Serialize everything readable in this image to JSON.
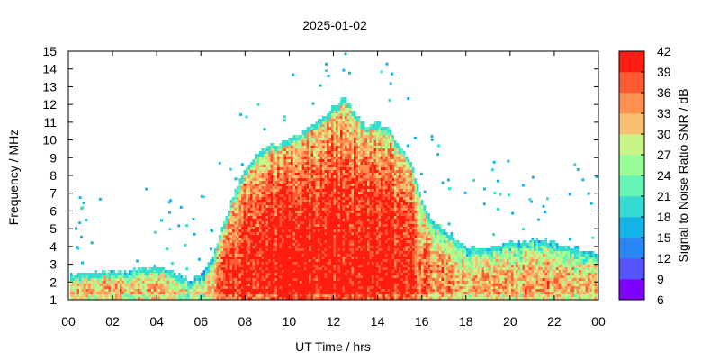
{
  "chart_data": {
    "type": "heatmap",
    "title": "2025-01-02",
    "xlabel": "UT Time / hrs",
    "ylabel": "Frequency / MHz",
    "colorbar_label": "Signal to Noise Ratio SNR / dB",
    "xlim": [
      0,
      24
    ],
    "ylim": [
      1,
      15
    ],
    "x_ticks": [
      "00",
      "02",
      "04",
      "06",
      "08",
      "10",
      "12",
      "14",
      "16",
      "18",
      "20",
      "22",
      "00"
    ],
    "y_ticks": [
      "1",
      "2",
      "3",
      "4",
      "5",
      "6",
      "7",
      "8",
      "9",
      "10",
      "11",
      "12",
      "13",
      "14",
      "15"
    ],
    "colorbar_ticks": [
      "6",
      "9",
      "12",
      "15",
      "18",
      "21",
      "24",
      "27",
      "30",
      "33",
      "36",
      "39",
      "42"
    ],
    "colorbar_range": [
      6,
      42
    ],
    "colorbar_colors": [
      "#7f00ff",
      "#5555ff",
      "#2a86f5",
      "#14b4e8",
      "#36dcd2",
      "#64f4b4",
      "#98ff98",
      "#c8f488",
      "#f8c070",
      "#ff9050",
      "#ff5a32",
      "#ff1c10"
    ],
    "grid": false,
    "envelope": {
      "description_hours": [
        0,
        1,
        2,
        3,
        4,
        5,
        5.5,
        6,
        6.5,
        7,
        7.5,
        8,
        8.5,
        9,
        9.5,
        10,
        10.5,
        11,
        11.5,
        12,
        12.5,
        13,
        13.5,
        14,
        14.5,
        15,
        15.5,
        16,
        16.5,
        17,
        17.5,
        18,
        19,
        20,
        21,
        22,
        23,
        24
      ],
      "max_freq_mhz": [
        2.5,
        2.6,
        2.7,
        2.8,
        2.9,
        2.5,
        2.2,
        2.6,
        3.5,
        5.5,
        7.2,
        8.5,
        9.3,
        9.8,
        9.9,
        10.1,
        10.5,
        11.0,
        11.4,
        12.0,
        12.5,
        11.5,
        10.8,
        11.0,
        10.6,
        9.7,
        8.8,
        6.5,
        5.5,
        5.0,
        4.5,
        4.0,
        4.0,
        4.3,
        4.5,
        4.3,
        4.0,
        3.6
      ],
      "peak_core_snr_db": [
        33,
        33,
        33,
        33,
        33,
        30,
        30,
        30,
        33,
        39,
        41,
        42,
        42,
        42,
        42,
        42,
        42,
        42,
        42,
        42,
        42,
        42,
        42,
        42,
        42,
        42,
        41,
        38,
        36,
        35,
        35,
        33,
        33,
        33,
        33,
        33,
        33,
        33
      ]
    }
  }
}
